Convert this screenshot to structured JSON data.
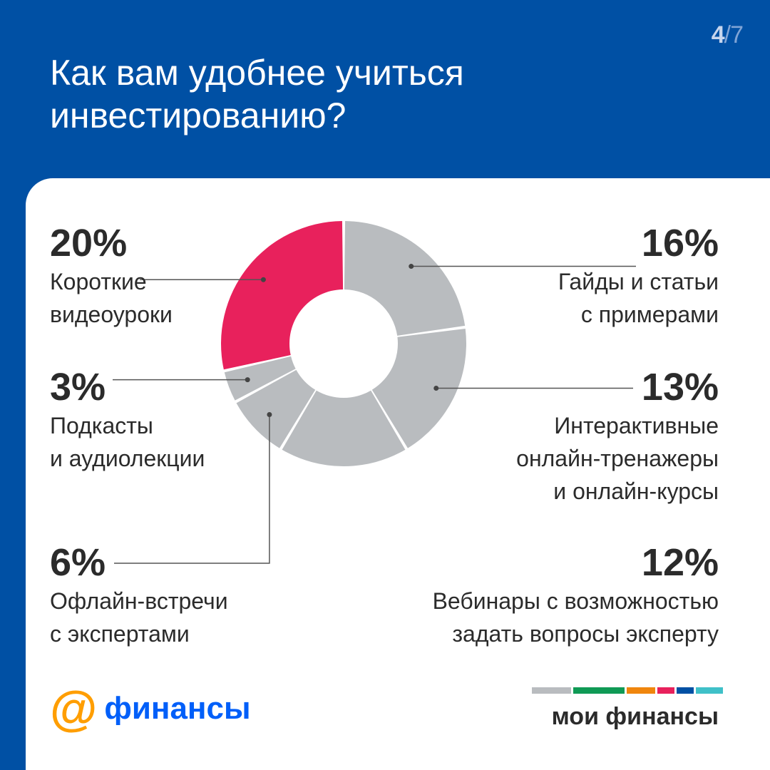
{
  "page": {
    "current": "4",
    "total": "/7"
  },
  "title": {
    "line1": "Как вам удобнее учиться",
    "line2": "инвестированию?"
  },
  "colors": {
    "background": "#0050a4",
    "highlight": "#e8215c",
    "slice": "#b9bcbf",
    "text": "#2b2b2b"
  },
  "chart_data": {
    "type": "pie",
    "style": "donut",
    "series": [
      {
        "label": "Гайды и статьи с примерами",
        "value": 16,
        "display": "16%"
      },
      {
        "label": "Интерактивные онлайн-тренажеры и онлайн-курсы",
        "value": 13,
        "display": "13%"
      },
      {
        "label": "Вебинары с возможностью задать вопросы эксперту",
        "value": 12,
        "display": "12%"
      },
      {
        "label": "Офлайн-встречи с экспертами",
        "value": 6,
        "display": "6%"
      },
      {
        "label": "Подкасты и аудиолекции",
        "value": 3,
        "display": "3%"
      },
      {
        "label": "Короткие видеоуроки",
        "value": 20,
        "display": "20%",
        "highlighted": true
      }
    ]
  },
  "labels": {
    "videos": {
      "pct": "20%",
      "line1": "Короткие",
      "line2": "видеоуроки"
    },
    "podcasts": {
      "pct": "3%",
      "line1": "Подкасты",
      "line2": "и аудиолекции"
    },
    "offline": {
      "pct": "6%",
      "line1": "Офлайн-встречи",
      "line2": "с экспертами"
    },
    "guides": {
      "pct": "16%",
      "line1": "Гайды и статьи",
      "line2": "с примерами"
    },
    "interactive": {
      "pct": "13%",
      "line1": "Интерактивные",
      "line2": "онлайн-тренажеры",
      "line3": "и онлайн-курсы"
    },
    "webinars": {
      "pct": "12%",
      "line1": "Вебинары с возможностью",
      "line2": "задать вопросы эксперту"
    }
  },
  "footer": {
    "brand_symbol": "@",
    "brand_word": "финансы",
    "right_brand": "мои финансы",
    "stripe_colors": [
      "#b9bcbf",
      "#0f9a55",
      "#f0860d",
      "#e8215c",
      "#0050a4",
      "#3fc0c8"
    ]
  }
}
